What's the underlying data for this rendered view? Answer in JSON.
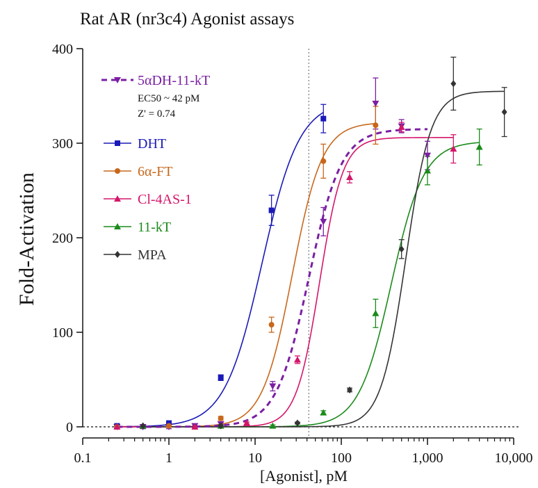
{
  "chart_data": {
    "type": "scatter",
    "title": "Rat AR (nr3c4) Agonist assays",
    "xlabel": "[Agonist], pM",
    "ylabel": "Fold-Activation",
    "xscale": "log",
    "xlim": [
      0.1,
      10000
    ],
    "ylim": [
      0,
      400
    ],
    "x_ticks": [
      0.1,
      1,
      10,
      100,
      1000,
      10000
    ],
    "x_tick_labels": [
      "0.1",
      "1",
      "10",
      "100",
      "1,000",
      "10,000"
    ],
    "y_ticks": [
      0,
      100,
      200,
      300,
      400
    ],
    "y_tick_labels": [
      "0",
      "100",
      "200",
      "300",
      "400"
    ],
    "baseline_y": 0,
    "reference_x": 42,
    "legend_position": "top-left",
    "series": [
      {
        "name": "5αDH-11-kT",
        "notes": [
          "EC50 ~ 42 pM",
          "Z' = 0.74"
        ],
        "color": "#7a1fa2",
        "marker": "triangle-down",
        "line": "dashed",
        "fit": {
          "bottom": 0,
          "top": 315,
          "ec50": 42,
          "hill": 2.3
        },
        "points": [
          {
            "x": 0.25,
            "y": 0,
            "err": 2
          },
          {
            "x": 0.5,
            "y": 0,
            "err": 2
          },
          {
            "x": 1,
            "y": 0,
            "err": 2
          },
          {
            "x": 2,
            "y": 1,
            "err": 2
          },
          {
            "x": 4,
            "y": 3,
            "err": 2
          },
          {
            "x": 16,
            "y": 43,
            "err": 5
          },
          {
            "x": 62,
            "y": 217,
            "err": 15
          },
          {
            "x": 250,
            "y": 342,
            "err": 27
          },
          {
            "x": 500,
            "y": 318,
            "err": 7
          },
          {
            "x": 1000,
            "y": 287,
            "err": 15
          }
        ]
      },
      {
        "name": "DHT",
        "color": "#1a1ab8",
        "marker": "square",
        "line": "solid",
        "fit": {
          "bottom": 0,
          "top": 345,
          "ec50": 12,
          "hill": 2
        },
        "points": [
          {
            "x": 0.25,
            "y": 1,
            "err": 1
          },
          {
            "x": 1,
            "y": 4,
            "err": 1
          },
          {
            "x": 4,
            "y": 52,
            "err": 3
          },
          {
            "x": 15.5,
            "y": 229,
            "err": 16
          },
          {
            "x": 62,
            "y": 326,
            "err": 15
          }
        ]
      },
      {
        "name": "6α-FT",
        "color": "#c8671b",
        "marker": "circle",
        "line": "solid",
        "fit": {
          "bottom": 0,
          "top": 322,
          "ec50": 27,
          "hill": 2.5
        },
        "points": [
          {
            "x": 0.25,
            "y": 0,
            "err": 1
          },
          {
            "x": 1,
            "y": 1,
            "err": 1
          },
          {
            "x": 4,
            "y": 9,
            "err": 2
          },
          {
            "x": 15.5,
            "y": 108,
            "err": 8
          },
          {
            "x": 62,
            "y": 281,
            "err": 18
          },
          {
            "x": 250,
            "y": 319,
            "err": 20
          }
        ]
      },
      {
        "name": "Cl-4AS-1",
        "color": "#d4166a",
        "marker": "triangle-up",
        "line": "solid",
        "fit": {
          "bottom": 0,
          "top": 306,
          "ec50": 56,
          "hill": 3.2
        },
        "points": [
          {
            "x": 0.25,
            "y": 0,
            "err": 1
          },
          {
            "x": 2,
            "y": 0,
            "err": 1
          },
          {
            "x": 8,
            "y": 4,
            "err": 1
          },
          {
            "x": 31,
            "y": 71,
            "err": 4
          },
          {
            "x": 125,
            "y": 264,
            "err": 6
          },
          {
            "x": 500,
            "y": 317,
            "err": 5
          },
          {
            "x": 2000,
            "y": 294,
            "err": 15
          }
        ]
      },
      {
        "name": "11-kT",
        "color": "#1b8a1b",
        "marker": "triangle-up",
        "line": "solid",
        "fit": {
          "bottom": 0,
          "top": 302,
          "ec50": 380,
          "hill": 2.3
        },
        "points": [
          {
            "x": 0.5,
            "y": 1,
            "err": 1
          },
          {
            "x": 4,
            "y": 1,
            "err": 1
          },
          {
            "x": 16,
            "y": 1,
            "err": 1
          },
          {
            "x": 62,
            "y": 15,
            "err": 2
          },
          {
            "x": 250,
            "y": 120,
            "err": 15
          },
          {
            "x": 1000,
            "y": 271,
            "err": 15
          },
          {
            "x": 4000,
            "y": 296,
            "err": 19
          }
        ]
      },
      {
        "name": "MPA",
        "color": "#333333",
        "marker": "diamond",
        "line": "solid",
        "fit": {
          "bottom": 0,
          "top": 355,
          "ec50": 560,
          "hill": 3
        },
        "points": [
          {
            "x": 0.5,
            "y": 1,
            "err": 1
          },
          {
            "x": 4,
            "y": 1,
            "err": 1
          },
          {
            "x": 31,
            "y": 4,
            "err": 1
          },
          {
            "x": 125,
            "y": 39,
            "err": 2
          },
          {
            "x": 500,
            "y": 188,
            "err": 10
          },
          {
            "x": 2000,
            "y": 363,
            "err": 28
          },
          {
            "x": 7800,
            "y": 333,
            "err": 26
          }
        ]
      }
    ]
  }
}
